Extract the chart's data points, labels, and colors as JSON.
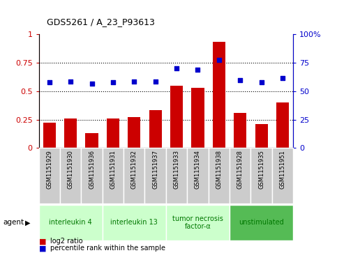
{
  "title": "GDS5261 / A_23_P93613",
  "samples": [
    "GSM1151929",
    "GSM1151930",
    "GSM1151936",
    "GSM1151931",
    "GSM1151932",
    "GSM1151937",
    "GSM1151933",
    "GSM1151934",
    "GSM1151938",
    "GSM1151928",
    "GSM1151935",
    "GSM1151951"
  ],
  "log2_ratio": [
    0.22,
    0.26,
    0.13,
    0.26,
    0.27,
    0.33,
    0.55,
    0.53,
    0.93,
    0.31,
    0.21,
    0.4
  ],
  "percentile_rank": [
    57.5,
    58.5,
    56.5,
    57.5,
    58.5,
    58.5,
    70.0,
    68.5,
    77.5,
    59.5,
    57.5,
    61.5
  ],
  "bar_color": "#cc0000",
  "dot_color": "#0000cc",
  "agent_groups": [
    {
      "label": "interleukin 4",
      "start": 0,
      "end": 3,
      "color": "#ccffcc",
      "text_color": "#007700"
    },
    {
      "label": "interleukin 13",
      "start": 3,
      "end": 6,
      "color": "#ccffcc",
      "text_color": "#007700"
    },
    {
      "label": "tumor necrosis\nfactor-α",
      "start": 6,
      "end": 9,
      "color": "#ccffcc",
      "text_color": "#007700"
    },
    {
      "label": "unstimulated",
      "start": 9,
      "end": 12,
      "color": "#55bb55",
      "text_color": "#007700"
    }
  ],
  "ylim_left": [
    0,
    1.0
  ],
  "ylim_right": [
    0,
    100
  ],
  "yticks_left": [
    0,
    0.25,
    0.5,
    0.75,
    1.0
  ],
  "yticks_right": [
    0,
    25,
    50,
    75,
    100
  ],
  "ytick_labels_left": [
    "0",
    "0.25",
    "0.5",
    "0.75",
    "1"
  ],
  "ytick_labels_right": [
    "0",
    "25",
    "50",
    "75",
    "100%"
  ],
  "hlines": [
    0.25,
    0.5,
    0.75
  ],
  "left_axis_color": "#cc0000",
  "right_axis_color": "#0000cc",
  "grid_color": "#000000",
  "tick_bg_color": "#cccccc",
  "legend_items": [
    {
      "color": "#cc0000",
      "label": "log2 ratio"
    },
    {
      "color": "#0000cc",
      "label": "percentile rank within the sample"
    }
  ],
  "agent_label": "agent"
}
